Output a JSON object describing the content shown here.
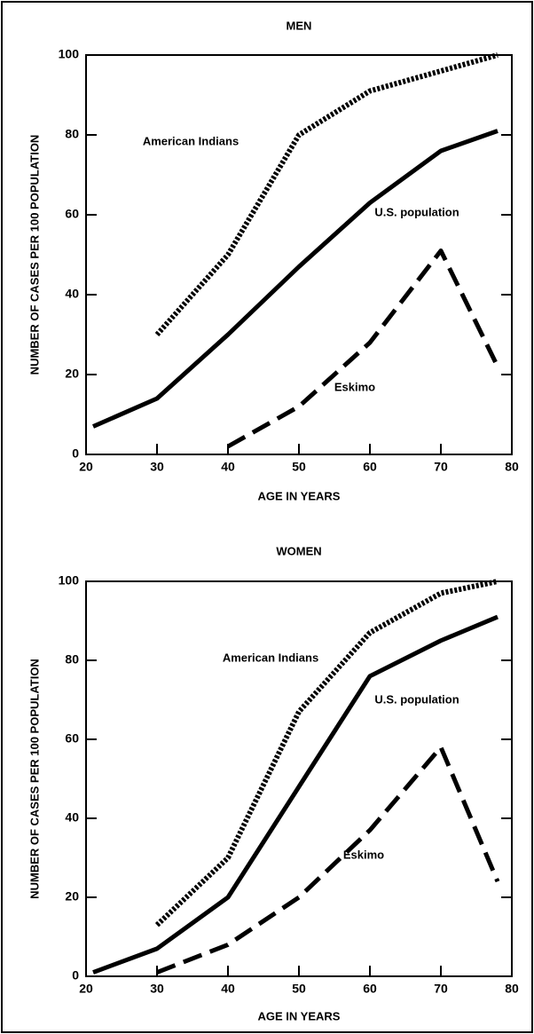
{
  "chart_data": [
    {
      "type": "line",
      "title": "MEN",
      "x_label": "AGE IN YEARS",
      "y_label": "NUMBER OF CASES PER 100 POPULATION",
      "xlim": [
        20,
        80
      ],
      "ylim": [
        0,
        100
      ],
      "xticks": [
        20,
        30,
        40,
        50,
        60,
        70,
        80
      ],
      "yticks": [
        0,
        20,
        40,
        60,
        80,
        100
      ],
      "series": [
        {
          "name": "American Indians",
          "color": "#000000",
          "style": "dotted",
          "x": [
            30,
            40,
            50,
            60,
            70,
            78
          ],
          "values": [
            30,
            50,
            80,
            91,
            96,
            100
          ]
        },
        {
          "name": "U.S. population",
          "color": "#000000",
          "style": "solid",
          "x": [
            21,
            30,
            40,
            50,
            60,
            70,
            78
          ],
          "values": [
            7,
            14,
            30,
            47,
            63,
            76,
            81
          ]
        },
        {
          "name": "Eskimo",
          "color": "#000000",
          "style": "dashed",
          "x": [
            40,
            50,
            60,
            70,
            78
          ],
          "values": [
            2,
            12,
            28,
            51,
            22
          ]
        }
      ]
    },
    {
      "type": "line",
      "title": "WOMEN",
      "x_label": "AGE IN YEARS",
      "y_label": "NUMBER OF CASES PER 100 POPULATION",
      "xlim": [
        20,
        80
      ],
      "ylim": [
        0,
        100
      ],
      "xticks": [
        20,
        30,
        40,
        50,
        60,
        70,
        80
      ],
      "yticks": [
        0,
        20,
        40,
        60,
        80,
        100
      ],
      "series": [
        {
          "name": "American Indians",
          "color": "#000000",
          "style": "dotted",
          "x": [
            30,
            40,
            50,
            60,
            70,
            78
          ],
          "values": [
            13,
            30,
            67,
            87,
            97,
            100
          ]
        },
        {
          "name": "U.S. population",
          "color": "#000000",
          "style": "solid",
          "x": [
            21,
            30,
            40,
            50,
            60,
            70,
            78
          ],
          "values": [
            1,
            7,
            20,
            48,
            76,
            85,
            91
          ]
        },
        {
          "name": "Eskimo",
          "color": "#000000",
          "style": "dashed",
          "x": [
            30,
            40,
            50,
            60,
            70,
            78
          ],
          "values": [
            1,
            8,
            20,
            37,
            58,
            24
          ]
        }
      ]
    }
  ]
}
